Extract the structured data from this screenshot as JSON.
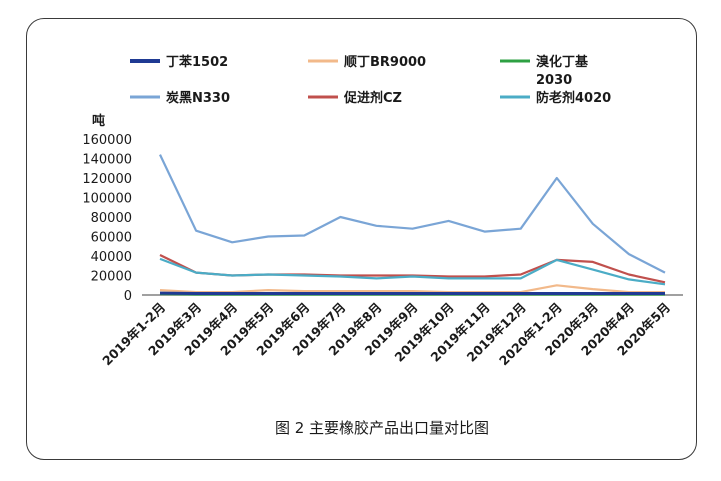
{
  "chart_data": {
    "type": "line",
    "ylabel": "吨",
    "caption": "图 2  主要橡胶产品出口量对比图",
    "ylim": [
      0,
      160000
    ],
    "yticks": [
      "0",
      "20000",
      "40000",
      "60000",
      "80000",
      "100000",
      "120000",
      "140000",
      "160000"
    ],
    "categories": [
      "2019年1-2月",
      "2019年3月",
      "2019年4月",
      "2019年5月",
      "2019年6月",
      "2019年7月",
      "2019年8月",
      "2019年9月",
      "2019年10月",
      "2019年11月",
      "2019年12月",
      "2020年1-2月",
      "2020年3月",
      "2020年4月",
      "2020年5月"
    ],
    "legend_position": "top",
    "series": [
      {
        "name": "丁苯1502",
        "color": "#1f3a93",
        "values": [
          2000,
          1500,
          1500,
          1500,
          1500,
          1500,
          1500,
          1500,
          1500,
          1500,
          1500,
          1500,
          1500,
          1500,
          1500
        ]
      },
      {
        "name": "顺丁BR9000",
        "color": "#f2b98a",
        "values": [
          5000,
          3000,
          3000,
          5000,
          4000,
          4000,
          4000,
          4000,
          3000,
          3000,
          3000,
          10000,
          6000,
          3000,
          3000
        ]
      },
      {
        "name": "溴化丁基2030",
        "color": "#2ea043",
        "values": [
          1000,
          500,
          500,
          500,
          500,
          500,
          500,
          500,
          500,
          500,
          500,
          500,
          500,
          500,
          500
        ]
      },
      {
        "name": "炭黑N330",
        "color": "#7aa5d6",
        "values": [
          144000,
          66000,
          54000,
          60000,
          61000,
          80000,
          71000,
          68000,
          76000,
          65000,
          68000,
          120000,
          73000,
          42000,
          23000
        ]
      },
      {
        "name": "促进剂CZ",
        "color": "#c0504d",
        "values": [
          41000,
          23000,
          20000,
          21000,
          21000,
          20000,
          20000,
          20000,
          19000,
          19000,
          21000,
          36000,
          34000,
          21000,
          13000
        ]
      },
      {
        "name": "防老剂4020",
        "color": "#4bacc6",
        "values": [
          37000,
          23000,
          20000,
          21000,
          20000,
          19000,
          17000,
          19000,
          17000,
          17000,
          17000,
          36000,
          26000,
          16000,
          11000
        ]
      }
    ]
  }
}
